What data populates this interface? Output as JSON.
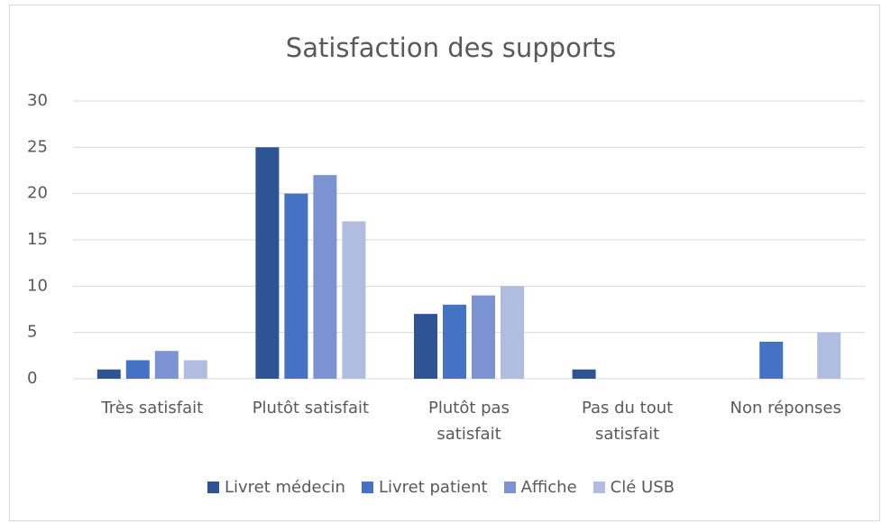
{
  "chart_data": {
    "type": "bar",
    "title": "Satisfaction des supports",
    "categories": [
      "Très satisfait",
      "Plutôt satisfait",
      "Plutôt pas satisfait",
      "Pas du tout satisfait",
      "Non réponses"
    ],
    "series": [
      {
        "name": "Livret médecin",
        "color": "#2e5496",
        "values": [
          1,
          25,
          7,
          1,
          0
        ]
      },
      {
        "name": "Livret patient",
        "color": "#4472c4",
        "values": [
          2,
          20,
          8,
          0,
          4
        ]
      },
      {
        "name": "Affiche",
        "color": "#7b93d3",
        "values": [
          3,
          22,
          9,
          0,
          0
        ]
      },
      {
        "name": "Clé USB",
        "color": "#b1bde0",
        "values": [
          2,
          17,
          10,
          0,
          5
        ]
      }
    ],
    "ylim": [
      0,
      30
    ],
    "yticks": [
      0,
      5,
      10,
      15,
      20,
      25,
      30
    ],
    "grid": true,
    "legend": "bottom"
  }
}
